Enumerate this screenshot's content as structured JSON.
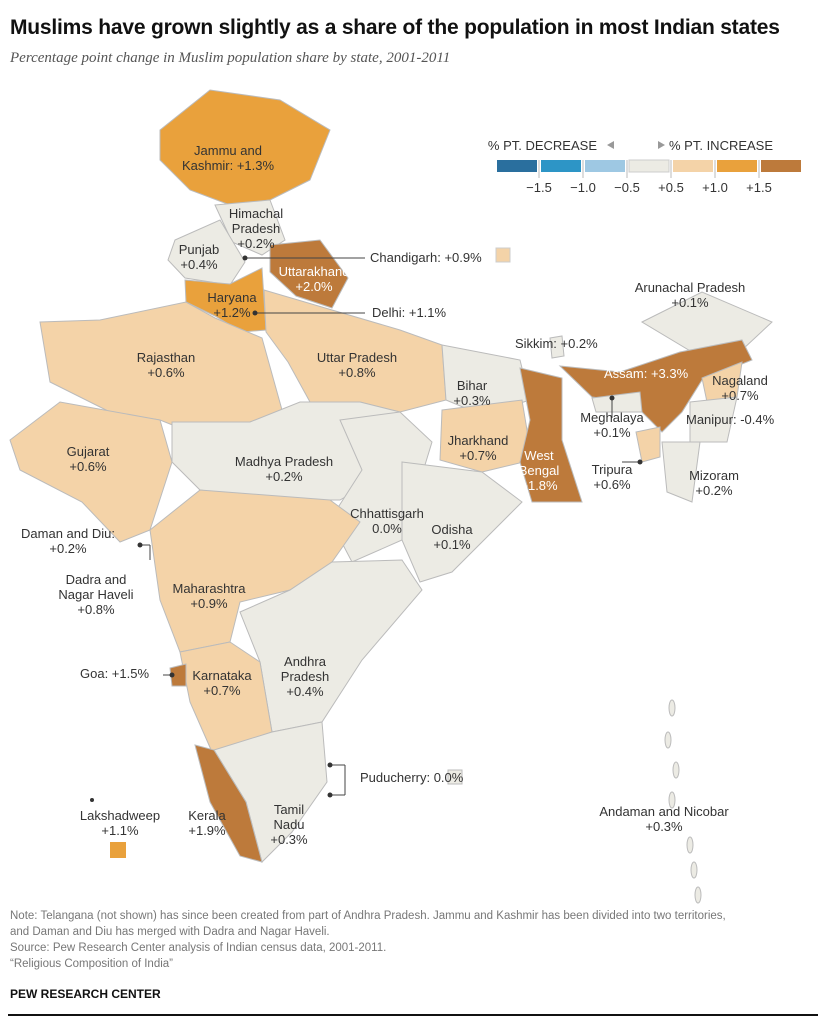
{
  "title": "Muslims have grown slightly as a share of the population in most Indian states",
  "subtitle": "Percentage point change in Muslim population share by state, 2001-2011",
  "legend": {
    "decrease_label": "% PT. DECREASE",
    "increase_label": "% PT. INCREASE",
    "ticks": [
      "−1.5",
      "−1.0",
      "−0.5",
      "+0.5",
      "+1.0",
      "+1.5"
    ],
    "colors": [
      "#2a6f9e",
      "#2d95c6",
      "#9ec8e3",
      "#ecebe4",
      "#f4d3a8",
      "#e9a13c",
      "#bd7a3b"
    ]
  },
  "states": [
    {
      "name": "Jammu and Kashmir",
      "value": 1.3,
      "label": [
        "Jammu and",
        "Kashmir: +1.3%"
      ]
    },
    {
      "name": "Himachal Pradesh",
      "value": 0.2,
      "label": [
        "Himachal",
        "Pradesh",
        "+0.2%"
      ]
    },
    {
      "name": "Punjab",
      "value": 0.4,
      "label": [
        "Punjab",
        "+0.4%"
      ]
    },
    {
      "name": "Chandigarh",
      "value": 0.9,
      "label": [
        "Chandigarh: +0.9%"
      ]
    },
    {
      "name": "Uttarakhand",
      "value": 2.0,
      "label": [
        "Uttarakhand",
        "+2.0%"
      ]
    },
    {
      "name": "Haryana",
      "value": 1.2,
      "label": [
        "Haryana",
        "+1.2%"
      ]
    },
    {
      "name": "Delhi",
      "value": 1.1,
      "label": [
        "Delhi: +1.1%"
      ]
    },
    {
      "name": "Rajasthan",
      "value": 0.6,
      "label": [
        "Rajasthan",
        "+0.6%"
      ]
    },
    {
      "name": "Uttar Pradesh",
      "value": 0.8,
      "label": [
        "Uttar Pradesh",
        "+0.8%"
      ]
    },
    {
      "name": "Arunachal Pradesh",
      "value": 0.1,
      "label": [
        "Arunachal Pradesh",
        "+0.1%"
      ]
    },
    {
      "name": "Sikkim",
      "value": 0.2,
      "label": [
        "Sikkim: +0.2%"
      ]
    },
    {
      "name": "Assam",
      "value": 3.3,
      "label": [
        "Assam: +3.3%"
      ]
    },
    {
      "name": "Nagaland",
      "value": 0.7,
      "label": [
        "Nagaland",
        "+0.7%"
      ]
    },
    {
      "name": "Bihar",
      "value": 0.3,
      "label": [
        "Bihar",
        "+0.3%"
      ]
    },
    {
      "name": "Meghalaya",
      "value": 0.1,
      "label": [
        "Meghalaya",
        "+0.1%"
      ]
    },
    {
      "name": "Manipur",
      "value": -0.4,
      "label": [
        "Manipur: -0.4%"
      ]
    },
    {
      "name": "Gujarat",
      "value": 0.6,
      "label": [
        "Gujarat",
        "+0.6%"
      ]
    },
    {
      "name": "Madhya Pradesh",
      "value": 0.2,
      "label": [
        "Madhya Pradesh",
        "+0.2%"
      ]
    },
    {
      "name": "Jharkhand",
      "value": 0.7,
      "label": [
        "Jharkhand",
        "+0.7%"
      ]
    },
    {
      "name": "West Bengal",
      "value": 1.8,
      "label": [
        "West",
        "Bengal",
        "+1.8%"
      ]
    },
    {
      "name": "Tripura",
      "value": 0.6,
      "label": [
        "Tripura",
        "+0.6%"
      ]
    },
    {
      "name": "Mizoram",
      "value": 0.2,
      "label": [
        "Mizoram",
        "+0.2%"
      ]
    },
    {
      "name": "Chhattisgarh",
      "value": 0.0,
      "label": [
        "Chhattisgarh",
        "0.0%"
      ]
    },
    {
      "name": "Odisha",
      "value": 0.1,
      "label": [
        "Odisha",
        "+0.1%"
      ]
    },
    {
      "name": "Daman and Diu",
      "value": 0.2,
      "label": [
        "Daman and Diu:",
        "+0.2%"
      ]
    },
    {
      "name": "Maharashtra",
      "value": 0.9,
      "label": [
        "Maharashtra",
        "+0.9%"
      ]
    },
    {
      "name": "Dadra and Nagar Haveli",
      "value": 0.8,
      "label": [
        "Dadra and",
        "Nagar Haveli",
        "+0.8%"
      ]
    },
    {
      "name": "Andhra Pradesh",
      "value": 0.4,
      "label": [
        "Andhra",
        "Pradesh",
        "+0.4%"
      ]
    },
    {
      "name": "Karnataka",
      "value": 0.7,
      "label": [
        "Karnataka",
        "+0.7%"
      ]
    },
    {
      "name": "Goa",
      "value": 1.5,
      "label": [
        "Goa: +1.5%"
      ]
    },
    {
      "name": "Puducherry",
      "value": 0.0,
      "label": [
        "Puducherry: 0.0%"
      ]
    },
    {
      "name": "Tamil Nadu",
      "value": 0.3,
      "label": [
        "Tamil",
        "Nadu",
        "+0.3%"
      ]
    },
    {
      "name": "Kerala",
      "value": 1.9,
      "label": [
        "Kerala",
        "+1.9%"
      ]
    },
    {
      "name": "Lakshadweep",
      "value": 1.1,
      "label": [
        "Lakshadweep",
        "+1.1%"
      ]
    },
    {
      "name": "Andaman and Nicobar",
      "value": 0.3,
      "label": [
        "Andaman and Nicobar",
        "+0.3%"
      ]
    }
  ],
  "notes": [
    "Note: Telangana (not shown) has since been created from part of Andhra Pradesh. Jammu and Kashmir has been divided into two territories,",
    "and Daman and Diu has merged with Dadra and Nagar Haveli.",
    "Source: Pew Research Center analysis of Indian census data, 2001-2011.",
    "“Religious Composition of India”"
  ],
  "brand": "PEW RESEARCH CENTER"
}
